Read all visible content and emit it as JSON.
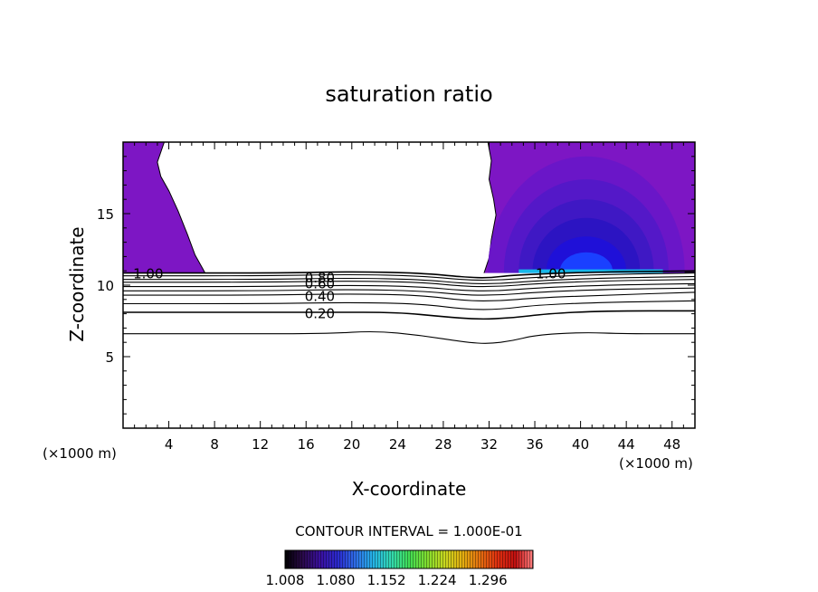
{
  "chart_data": {
    "type": "contour",
    "title": "saturation ratio",
    "xlabel": "X-coordinate",
    "ylabel": "Z-coordinate",
    "x_unit": "(×1000 m)",
    "y_unit": "(×1000 m)",
    "xlim": [
      0,
      50
    ],
    "ylim": [
      0,
      20
    ],
    "x_ticks": [
      4,
      8,
      12,
      16,
      20,
      24,
      28,
      32,
      36,
      40,
      44,
      48
    ],
    "y_ticks": [
      5,
      10,
      15
    ],
    "contour_interval_text": "CONTOUR INTERVAL = 1.000E-01",
    "contour_labels": [
      {
        "text": "1.00",
        "x": 2.2,
        "z": 10.8
      },
      {
        "text": "0.80",
        "x": 17.2,
        "z": 10.5
      },
      {
        "text": "0.60",
        "x": 17.2,
        "z": 10.1
      },
      {
        "text": "0.40",
        "x": 17.2,
        "z": 9.2
      },
      {
        "text": "0.20",
        "x": 17.2,
        "z": 8.0
      },
      {
        "text": "1.00",
        "x": 37.4,
        "z": 10.8
      }
    ],
    "contour_lines": [
      {
        "level": 0.1,
        "points": [
          [
            0,
            6.6
          ],
          [
            10,
            6.6
          ],
          [
            18,
            6.6
          ],
          [
            22,
            6.8
          ],
          [
            26,
            6.5
          ],
          [
            30,
            6.0
          ],
          [
            32,
            5.9
          ],
          [
            34,
            6.1
          ],
          [
            36,
            6.5
          ],
          [
            40,
            6.7
          ],
          [
            44,
            6.6
          ],
          [
            50,
            6.6
          ]
        ]
      },
      {
        "level": 0.2,
        "points": [
          [
            0,
            8.1
          ],
          [
            10,
            8.1
          ],
          [
            18,
            8.1
          ],
          [
            24,
            8.1
          ],
          [
            28,
            7.8
          ],
          [
            31,
            7.6
          ],
          [
            34,
            7.7
          ],
          [
            37,
            8.0
          ],
          [
            42,
            8.2
          ],
          [
            50,
            8.2
          ]
        ]
      },
      {
        "level": 0.3,
        "points": [
          [
            0,
            8.7
          ],
          [
            12,
            8.7
          ],
          [
            20,
            8.8
          ],
          [
            26,
            8.7
          ],
          [
            30,
            8.3
          ],
          [
            33,
            8.3
          ],
          [
            36,
            8.6
          ],
          [
            42,
            8.8
          ],
          [
            50,
            8.9
          ]
        ]
      },
      {
        "level": 0.4,
        "points": [
          [
            0,
            9.3
          ],
          [
            12,
            9.3
          ],
          [
            20,
            9.4
          ],
          [
            26,
            9.3
          ],
          [
            30,
            8.9
          ],
          [
            33,
            8.9
          ],
          [
            36,
            9.1
          ],
          [
            42,
            9.3
          ],
          [
            50,
            9.5
          ]
        ]
      },
      {
        "level": 0.5,
        "points": [
          [
            0,
            9.6
          ],
          [
            12,
            9.6
          ],
          [
            20,
            9.7
          ],
          [
            26,
            9.6
          ],
          [
            30,
            9.3
          ],
          [
            33,
            9.3
          ],
          [
            36,
            9.5
          ],
          [
            42,
            9.7
          ],
          [
            50,
            9.8
          ]
        ]
      },
      {
        "level": 0.6,
        "points": [
          [
            0,
            9.9
          ],
          [
            12,
            9.9
          ],
          [
            20,
            10.0
          ],
          [
            26,
            9.9
          ],
          [
            30,
            9.6
          ],
          [
            33,
            9.6
          ],
          [
            36,
            9.8
          ],
          [
            42,
            10.0
          ],
          [
            50,
            10.1
          ]
        ]
      },
      {
        "level": 0.7,
        "points": [
          [
            0,
            10.2
          ],
          [
            12,
            10.2
          ],
          [
            20,
            10.3
          ],
          [
            26,
            10.2
          ],
          [
            30,
            9.9
          ],
          [
            33,
            9.9
          ],
          [
            36,
            10.1
          ],
          [
            42,
            10.3
          ],
          [
            50,
            10.4
          ]
        ]
      },
      {
        "level": 0.8,
        "points": [
          [
            0,
            10.4
          ],
          [
            12,
            10.4
          ],
          [
            20,
            10.5
          ],
          [
            26,
            10.4
          ],
          [
            30,
            10.1
          ],
          [
            33,
            10.1
          ],
          [
            36,
            10.3
          ],
          [
            42,
            10.5
          ],
          [
            50,
            10.6
          ]
        ]
      },
      {
        "level": 0.9,
        "points": [
          [
            0,
            10.65
          ],
          [
            12,
            10.65
          ],
          [
            20,
            10.75
          ],
          [
            26,
            10.65
          ],
          [
            30,
            10.35
          ],
          [
            33,
            10.35
          ],
          [
            36,
            10.55
          ],
          [
            42,
            10.75
          ],
          [
            50,
            10.85
          ]
        ]
      },
      {
        "level": 1.0,
        "points": [
          [
            0,
            10.85
          ],
          [
            14,
            10.85
          ],
          [
            20,
            10.95
          ],
          [
            26,
            10.85
          ],
          [
            30,
            10.55
          ],
          [
            32,
            10.5
          ],
          [
            34,
            10.7
          ],
          [
            40,
            10.9
          ],
          [
            50,
            11.0
          ]
        ]
      }
    ],
    "supersaturated_regions": [
      {
        "name": "left",
        "boundary": [
          [
            0,
            20
          ],
          [
            3.6,
            20
          ],
          [
            3.0,
            18.6
          ],
          [
            3.3,
            17.6
          ],
          [
            4.0,
            16.6
          ],
          [
            4.8,
            15.2
          ],
          [
            5.6,
            13.6
          ],
          [
            6.3,
            12.1
          ],
          [
            7.0,
            11.1
          ],
          [
            7.2,
            10.8
          ],
          [
            0,
            10.8
          ]
        ]
      },
      {
        "name": "right",
        "boundary": [
          [
            31.9,
            20
          ],
          [
            50,
            20
          ],
          [
            50,
            10.9
          ],
          [
            31.5,
            10.7
          ],
          [
            32.0,
            11.9
          ],
          [
            32.2,
            13.2
          ],
          [
            32.6,
            14.9
          ],
          [
            32.4,
            16.0
          ],
          [
            32.0,
            17.4
          ],
          [
            32.2,
            18.7
          ]
        ]
      }
    ],
    "colorbar": {
      "min": 1.008,
      "max": 1.36,
      "tick_labels": [
        "1.008",
        "1.080",
        "1.152",
        "1.224",
        "1.296"
      ],
      "colors": [
        "#000000",
        "#2a0a4a",
        "#3a10a0",
        "#2b2bd0",
        "#2f6fe8",
        "#25b4e6",
        "#33d9b0",
        "#40dd55",
        "#7fdd30",
        "#c8d820",
        "#e4b010",
        "#e47010",
        "#e03010",
        "#c01010",
        "#ff8080"
      ]
    },
    "fill_colors": {
      "outer": "#7d16c4",
      "mid1": "#6a16c8",
      "mid2": "#5418c8",
      "mid3": "#3f18c4",
      "mid4": "#2c14c2",
      "core": "#1f10d8",
      "peak": "#17b8ea",
      "peak_edge": "#1a40ff"
    }
  }
}
